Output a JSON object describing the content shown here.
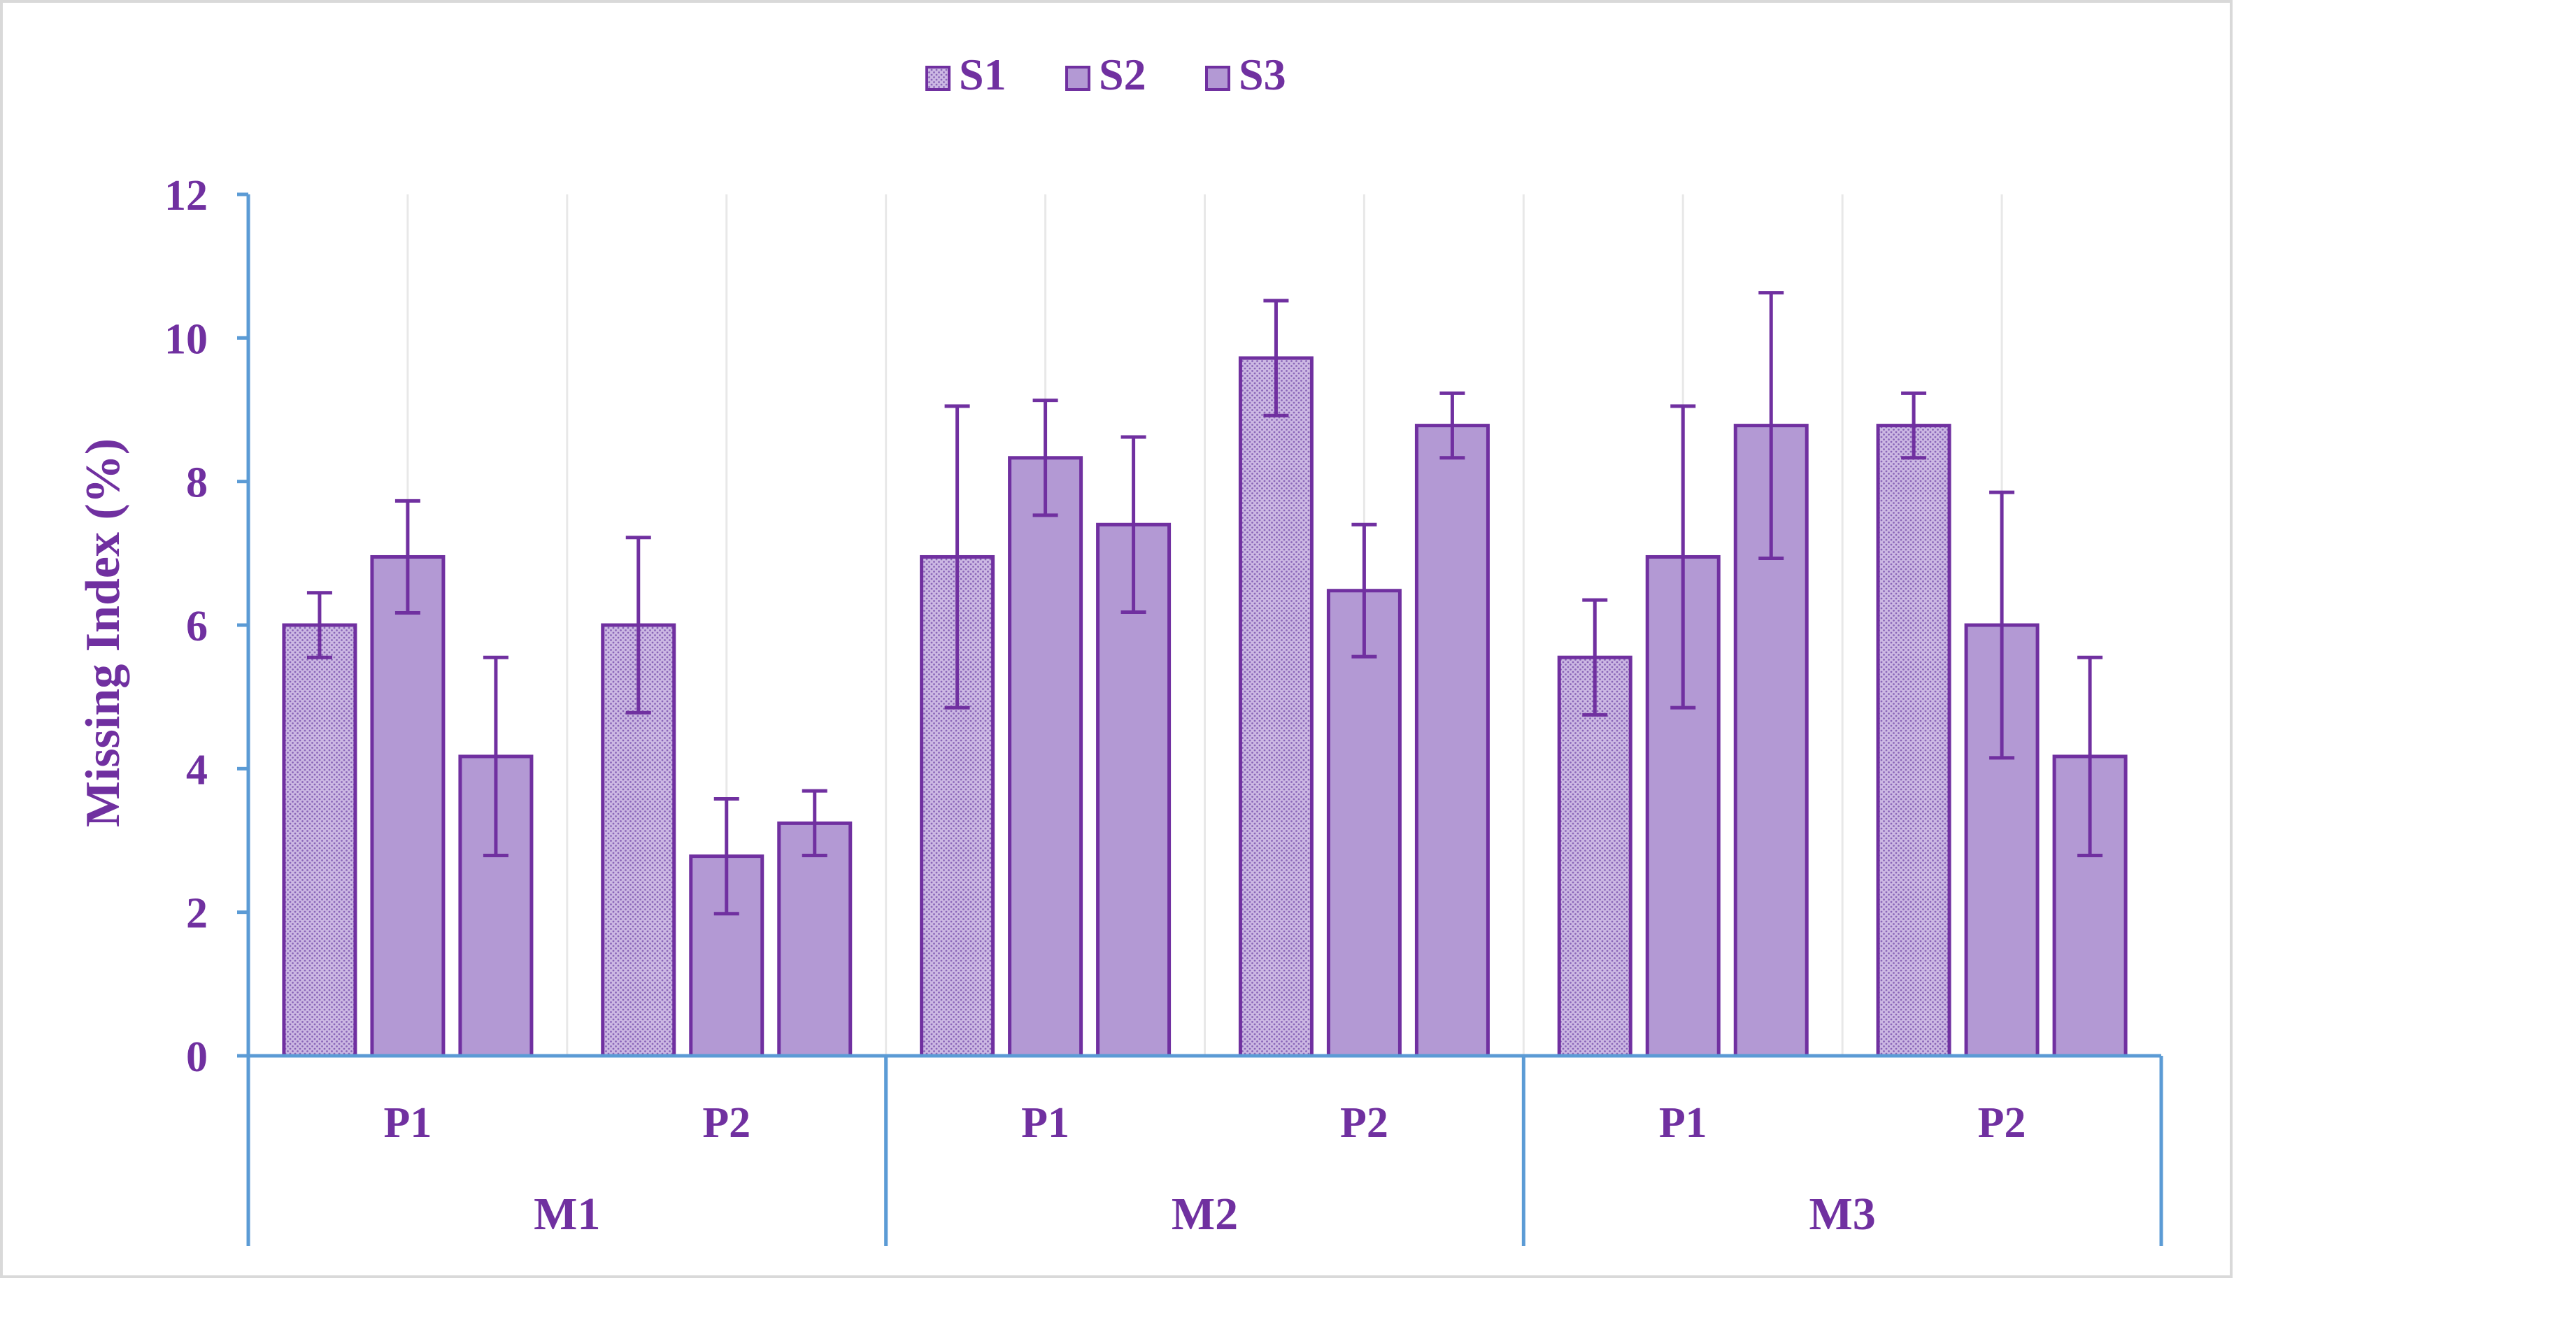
{
  "chart_data": {
    "type": "bar",
    "ylabel": "Missing Index (%)",
    "ylim": [
      0,
      12
    ],
    "yticks": [
      0,
      2,
      4,
      6,
      8,
      10,
      12
    ],
    "grid": "vertical",
    "legend_position": "top-center",
    "groups": [
      {
        "label": "M1",
        "subgroups": [
          "P1",
          "P2"
        ]
      },
      {
        "label": "M2",
        "subgroups": [
          "P1",
          "P2"
        ]
      },
      {
        "label": "M3",
        "subgroups": [
          "P1",
          "P2"
        ]
      }
    ],
    "categories": [
      "M1 P1",
      "M1 P2",
      "M2 P1",
      "M2 P2",
      "M3 P1",
      "M3 P2"
    ],
    "series": [
      {
        "name": "S1",
        "pattern": "dotted",
        "values": [
          6.0,
          6.0,
          6.95,
          9.72,
          5.55,
          8.78
        ],
        "errors": [
          0.45,
          1.22,
          2.1,
          0.8,
          0.8,
          0.45
        ]
      },
      {
        "name": "S2",
        "pattern": "solid",
        "values": [
          6.95,
          2.78,
          8.33,
          6.48,
          6.95,
          6.0
        ],
        "errors": [
          0.78,
          0.8,
          0.8,
          0.92,
          2.1,
          1.85
        ]
      },
      {
        "name": "S3",
        "pattern": "solid",
        "values": [
          4.17,
          3.24,
          7.4,
          8.78,
          8.78,
          4.17
        ],
        "errors": [
          1.38,
          0.45,
          1.22,
          0.45,
          1.85,
          1.38
        ]
      }
    ]
  },
  "colors": {
    "bar_fill": "#b399d4",
    "bar_stroke": "#7030a0",
    "text": "#7030a0",
    "axis": "#5b9bd5",
    "grid": "#e8e8e8",
    "frame": "#d9d9d9"
  }
}
